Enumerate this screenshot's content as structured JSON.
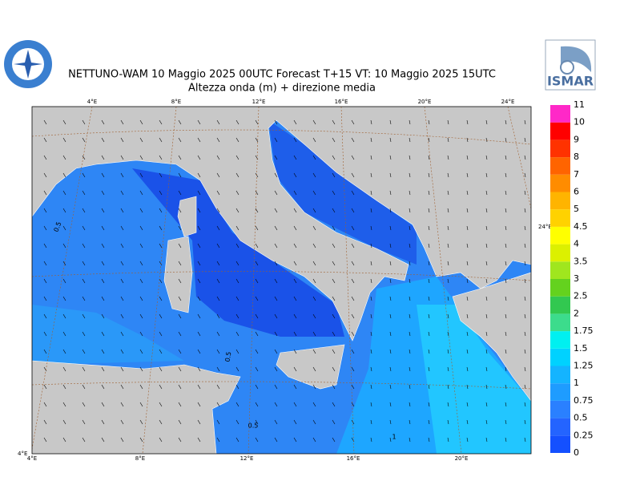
{
  "header": {
    "title": "NETTUNO-WAM  10   Maggio  2025 00UTC Forecast T+15 VT: 10   Maggio  2025 15UTC",
    "subtitle": "Altezza onda (m) + direzione media",
    "logo_right": "ISMAR"
  },
  "map": {
    "top_lon_labels": [
      "4°E",
      "8°E",
      "12°E",
      "16°E",
      "20°E",
      "24°E"
    ],
    "bottom_lon_labels": [
      "4°E",
      "8°E",
      "12°E",
      "16°E",
      "20°E"
    ],
    "right_label": "24°E",
    "corner_label": "4°E",
    "contour_labels": [
      "0.5",
      "0.5",
      "0.5",
      "1"
    ]
  },
  "legend": {
    "levels": [
      0,
      0.25,
      0.5,
      0.75,
      1,
      1.25,
      1.5,
      1.75,
      2,
      2.5,
      3,
      3.5,
      4,
      4.5,
      5,
      6,
      7,
      8,
      9,
      10,
      11
    ],
    "colors": [
      "#1450ff",
      "#2464ff",
      "#2a80ff",
      "#1e9cff",
      "#14b4ff",
      "#00d2ff",
      "#00f0f0",
      "#3cdc8c",
      "#32c850",
      "#64d21e",
      "#a0e61e",
      "#dcf000",
      "#ffff00",
      "#ffd200",
      "#ffb400",
      "#ff8c00",
      "#ff6400",
      "#ff3200",
      "#ff0000",
      "#ff28c8"
    ]
  }
}
